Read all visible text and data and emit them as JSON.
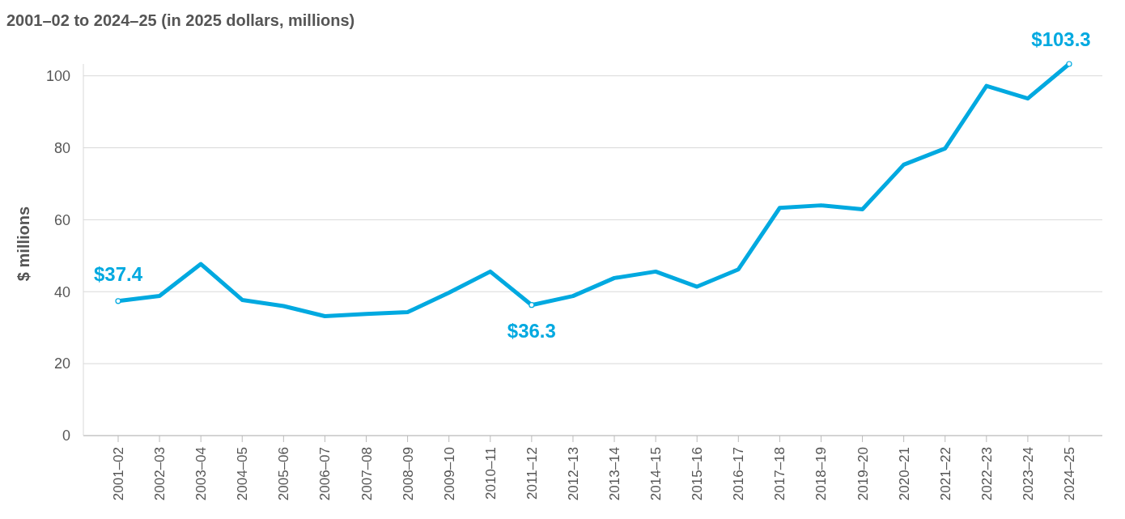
{
  "chart_data": {
    "type": "line",
    "title": "2001–02 to 2024–25 (in 2025 dollars, millions)",
    "ylabel": "$ millions",
    "categories": [
      "2001–02",
      "2002–03",
      "2003–04",
      "2004–05",
      "2005–06",
      "2006–07",
      "2007–08",
      "2008–09",
      "2009–10",
      "2010–11",
      "2011–12",
      "2012–13",
      "2013–14",
      "2014–15",
      "2015–16",
      "2016–17",
      "2017–18",
      "2018–19",
      "2019–20",
      "2020–21",
      "2021–22",
      "2022–23",
      "2023–24",
      "2024–25"
    ],
    "series": [
      {
        "color": "#00a9e0",
        "values": [
          37.4,
          38.8,
          47.7,
          37.7,
          36.0,
          33.2,
          33.8,
          34.3,
          39.7,
          45.6,
          36.3,
          38.8,
          43.8,
          45.6,
          41.4,
          46.2,
          63.3,
          64.0,
          62.9,
          75.3,
          79.8,
          97.2,
          93.7,
          103.3
        ],
        "value_labels": [
          "$37.4",
          null,
          null,
          null,
          null,
          null,
          null,
          null,
          null,
          null,
          "$36.3",
          null,
          null,
          null,
          null,
          null,
          null,
          null,
          null,
          null,
          null,
          null,
          null,
          "$103.3"
        ]
      }
    ],
    "ylim": [
      0,
      103.3
    ],
    "yticks": [
      0,
      20,
      40,
      60,
      80,
      100
    ],
    "grid": "y"
  }
}
